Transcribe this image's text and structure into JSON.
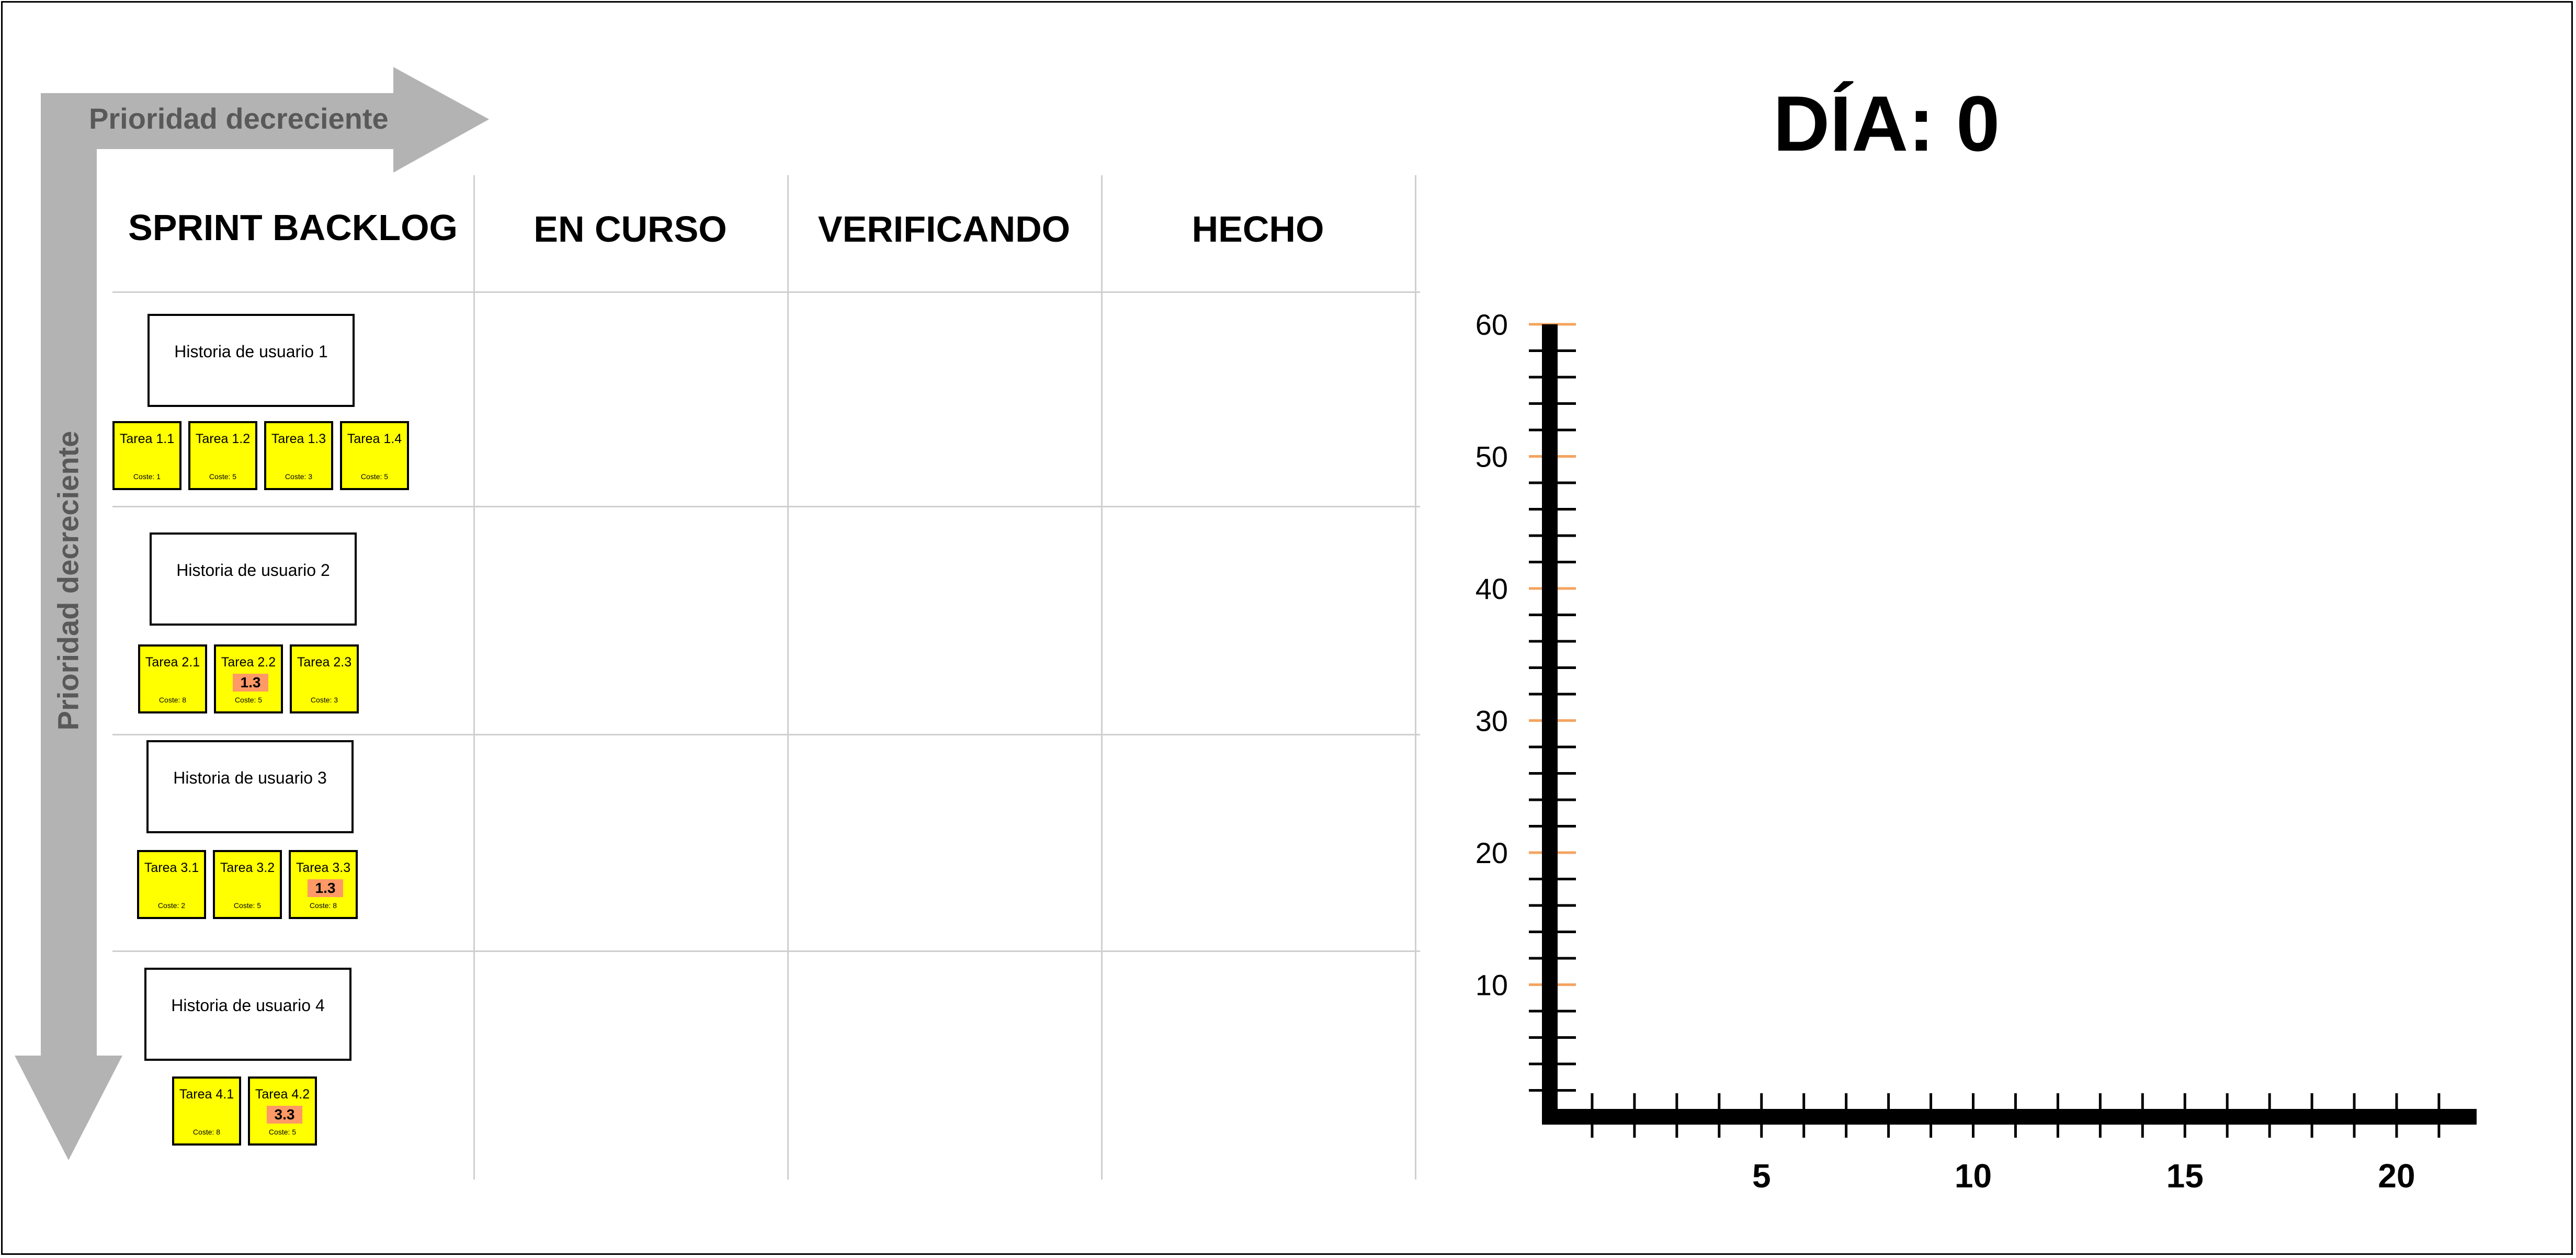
{
  "arrows": {
    "horizontal_label": "Prioridad decreciente",
    "vertical_label": "Prioridad decreciente",
    "color": "#b3b3b3"
  },
  "columns": [
    "SPRINT BACKLOG",
    "EN CURSO",
    "VERIFICANDO",
    "HECHO"
  ],
  "stories": [
    {
      "title": "Historia de usuario 1",
      "tasks": [
        {
          "name": "Tarea 1.1",
          "cost": "Coste: 1",
          "badge": ""
        },
        {
          "name": "Tarea 1.2",
          "cost": "Coste: 5",
          "badge": ""
        },
        {
          "name": "Tarea 1.3",
          "cost": "Coste: 3",
          "badge": ""
        },
        {
          "name": "Tarea 1.4",
          "cost": "Coste: 5",
          "badge": ""
        }
      ]
    },
    {
      "title": "Historia de usuario 2",
      "tasks": [
        {
          "name": "Tarea 2.1",
          "cost": "Coste: 8",
          "badge": ""
        },
        {
          "name": "Tarea 2.2",
          "cost": "Coste: 5",
          "badge": "1.3"
        },
        {
          "name": "Tarea 2.3",
          "cost": "Coste: 3",
          "badge": ""
        }
      ]
    },
    {
      "title": "Historia de usuario 3",
      "tasks": [
        {
          "name": "Tarea 3.1",
          "cost": "Coste: 2",
          "badge": ""
        },
        {
          "name": "Tarea 3.2",
          "cost": "Coste: 5",
          "badge": ""
        },
        {
          "name": "Tarea 3.3",
          "cost": "Coste: 8",
          "badge": "1.3"
        }
      ]
    },
    {
      "title": "Historia de usuario 4",
      "tasks": [
        {
          "name": "Tarea 4.1",
          "cost": "Coste: 8",
          "badge": ""
        },
        {
          "name": "Tarea 4.2",
          "cost": "Coste: 5",
          "badge": "3.3"
        }
      ]
    }
  ],
  "colors": {
    "task_fill": "#ffff00",
    "badge_fill": "#ff9966",
    "grid_line": "#cfcfcf",
    "major_tick": "#f4a460"
  },
  "burndown": {
    "day_label": "DÍA: 0",
    "chart_data": {
      "type": "line",
      "x_ticks": [
        5,
        10,
        15,
        20
      ],
      "x_range": [
        0,
        22
      ],
      "y_ticks": [
        10,
        20,
        30,
        40,
        50,
        60
      ],
      "y_range": [
        0,
        60
      ],
      "y_minor_step": 2,
      "x_minor_step": 1,
      "series": []
    }
  }
}
